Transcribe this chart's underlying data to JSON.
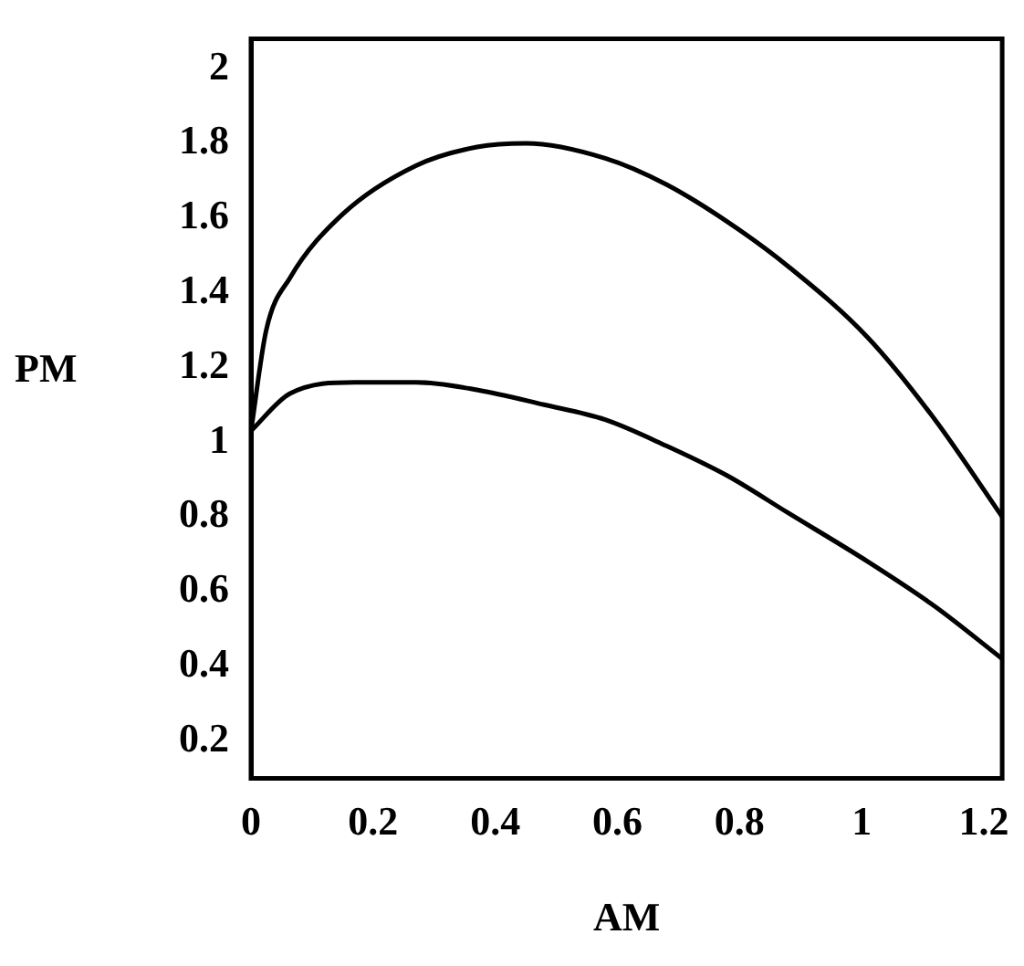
{
  "chart_data": {
    "type": "line",
    "xlabel": "AM",
    "ylabel": "PM",
    "xlim": [
      0,
      1.23
    ],
    "xticks": [
      0,
      0.2,
      0.4,
      0.6,
      0.8,
      1,
      1.2
    ],
    "ylim": [
      0.1,
      2.08
    ],
    "yticks": [
      0.2,
      0.4,
      0.6,
      0.8,
      1,
      1.2,
      1.4,
      1.6,
      1.8,
      2
    ],
    "grid": false,
    "legend": false,
    "marker": "none",
    "line_style": "solid",
    "series": [
      {
        "color": "#000000",
        "x": [
          0,
          0.025,
          0.064,
          0.15,
          0.27,
          0.37,
          0.45,
          0.58,
          0.68,
          0.78,
          0.88,
          1.01,
          1.12,
          1.23
        ],
        "values": [
          1.03,
          1.3,
          1.44,
          1.61,
          1.74,
          1.79,
          1.8,
          1.76,
          1.69,
          1.59,
          1.47,
          1.28,
          1.06,
          0.8
        ]
      },
      {
        "color": "#000000",
        "x": [
          0,
          0.064,
          0.17,
          0.27,
          0.37,
          0.48,
          0.58,
          0.68,
          0.78,
          0.88,
          1.01,
          1.12,
          1.23
        ],
        "values": [
          1.03,
          1.13,
          1.16,
          1.16,
          1.14,
          1.1,
          1.06,
          0.99,
          0.91,
          0.81,
          0.68,
          0.56,
          0.42
        ]
      }
    ]
  }
}
